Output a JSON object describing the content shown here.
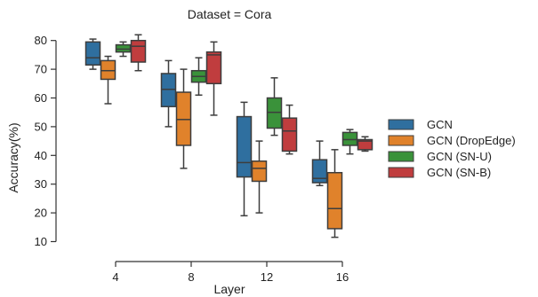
{
  "chart_data": {
    "type": "box",
    "title": "Dataset = Cora",
    "xlabel": "Layer",
    "ylabel": "Accuracy(%)",
    "categories": [
      "4",
      "8",
      "12",
      "16"
    ],
    "ylim": [
      10,
      80
    ],
    "yticks": [
      10,
      20,
      30,
      40,
      50,
      60,
      70,
      80
    ],
    "grid": false,
    "legend_position": "right",
    "series": [
      {
        "name": "GCN",
        "color": "#2f6f9f",
        "boxes": [
          {
            "min": 70,
            "q1": 71.5,
            "median": 74,
            "q3": 79.5,
            "max": 80.5
          },
          {
            "min": 50,
            "q1": 57,
            "median": 63,
            "q3": 68.5,
            "max": 73
          },
          {
            "min": 19,
            "q1": 32.5,
            "median": 37.5,
            "q3": 53.5,
            "max": 58.5
          },
          {
            "min": 29.5,
            "q1": 30.5,
            "median": 32,
            "q3": 38.5,
            "max": 45
          }
        ]
      },
      {
        "name": "GCN (DropEdge)",
        "color": "#e0822b",
        "boxes": [
          {
            "min": 58,
            "q1": 66.5,
            "median": 69.5,
            "q3": 73,
            "max": 74.5
          },
          {
            "min": 35.5,
            "q1": 43.5,
            "median": 52.5,
            "q3": 62,
            "max": 70
          },
          {
            "min": 20,
            "q1": 31,
            "median": 35.5,
            "q3": 38,
            "max": 45
          },
          {
            "min": 11.5,
            "q1": 14.5,
            "median": 21.5,
            "q3": 34,
            "max": 42
          }
        ]
      },
      {
        "name": "GCN (SN-U)",
        "color": "#3a923a",
        "boxes": [
          {
            "min": 74.5,
            "q1": 76,
            "median": 77,
            "q3": 78.5,
            "max": 79.5
          },
          {
            "min": 61,
            "q1": 65.5,
            "median": 67.5,
            "q3": 69.5,
            "max": 74
          },
          {
            "min": 47,
            "q1": 49.5,
            "median": 55,
            "q3": 60,
            "max": 67
          },
          {
            "min": 40.5,
            "q1": 43.5,
            "median": 45.5,
            "q3": 48,
            "max": 49
          }
        ]
      },
      {
        "name": "GCN (SN-B)",
        "color": "#c03d3e",
        "boxes": [
          {
            "min": 69.5,
            "q1": 72.5,
            "median": 78,
            "q3": 80,
            "max": 82
          },
          {
            "min": 54,
            "q1": 65,
            "median": 75,
            "q3": 76,
            "max": 79.5
          },
          {
            "min": 40.5,
            "q1": 41.5,
            "median": 48.5,
            "q3": 53,
            "max": 57.5
          },
          {
            "min": 41.5,
            "q1": 42,
            "median": 45,
            "q3": 45.5,
            "max": 46.5
          }
        ]
      }
    ]
  }
}
